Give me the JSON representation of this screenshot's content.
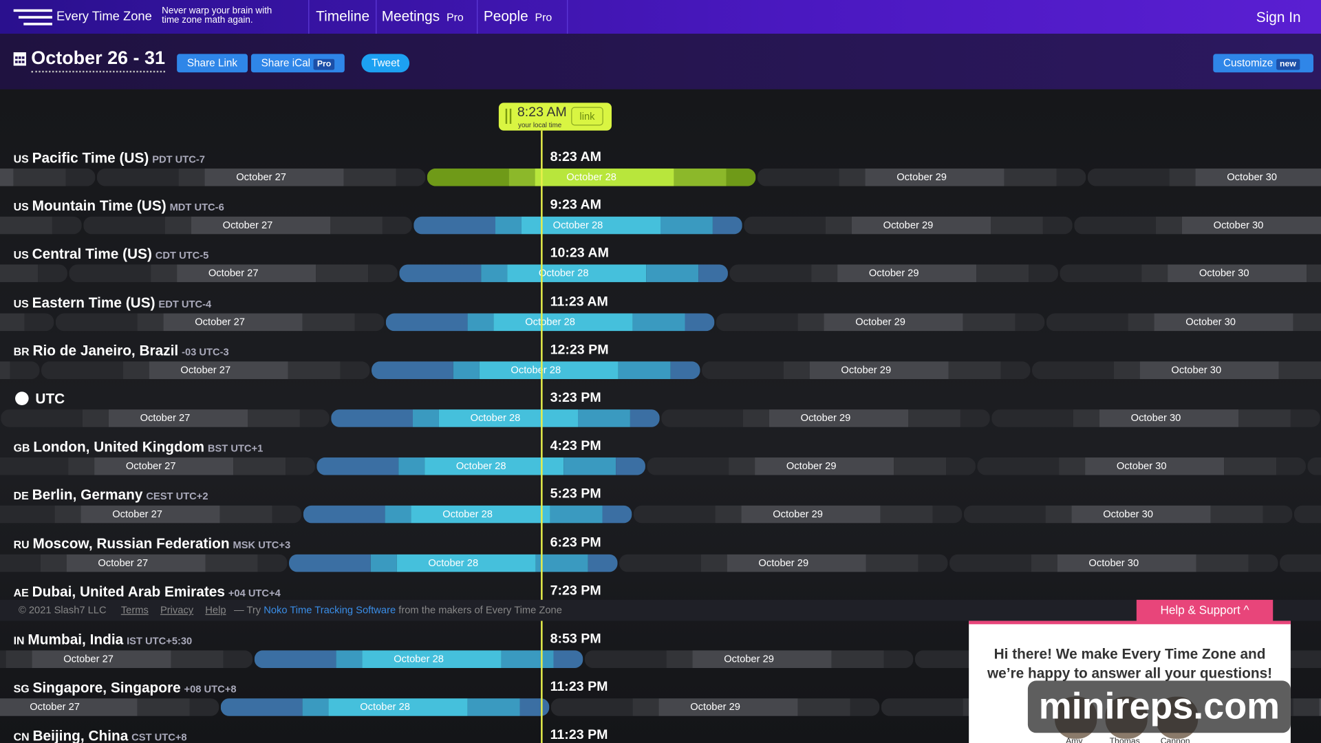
{
  "nav": {
    "logo": "Every Time Zone",
    "tagline": "Never warp your brain with time zone math again.",
    "items": [
      {
        "label": "Timeline"
      },
      {
        "label": "Meetings",
        "badge": "Pro"
      },
      {
        "label": "People",
        "badge": "Pro"
      }
    ],
    "sign_in": "Sign In"
  },
  "header": {
    "title": "October 26 - 31",
    "buttons": [
      {
        "label": "Share Link"
      },
      {
        "label": "Share iCal",
        "badge": "Pro"
      },
      {
        "label": "Tweet"
      }
    ],
    "customize": {
      "label": "Customize",
      "badge": "new"
    }
  },
  "now": {
    "time": "8:23 AM",
    "caption": "your local time",
    "link": "link"
  },
  "rows": [
    {
      "code": "US",
      "name": "Pacific Time (US)",
      "abbr": "PDT UTC-7",
      "time": "8:23 AM",
      "days": [
        "October 27",
        "October 28",
        "October 29",
        "October 30"
      ]
    },
    {
      "code": "US",
      "name": "Mountain Time (US)",
      "abbr": "MDT UTC-6",
      "time": "9:23 AM",
      "days": [
        "October 27",
        "October 28",
        "October 29",
        "October 30"
      ]
    },
    {
      "code": "US",
      "name": "Central Time (US)",
      "abbr": "CDT UTC-5",
      "time": "10:23 AM",
      "days": [
        "October 27",
        "October 28",
        "October 29",
        "October 30"
      ]
    },
    {
      "code": "US",
      "name": "Eastern Time (US)",
      "abbr": "EDT UTC-4",
      "time": "11:23 AM",
      "days": [
        "October 27",
        "October 28",
        "October 29",
        "October 30"
      ]
    },
    {
      "code": "BR",
      "name": "Rio de Janeiro, Brazil",
      "abbr": "-03 UTC-3",
      "time": "12:23 PM",
      "days": [
        "October 27",
        "October 28",
        "October 29",
        "October 30"
      ]
    },
    {
      "name": "UTC",
      "time": "3:23 PM",
      "days": [
        "October 27",
        "October 28",
        "October 29",
        "October 30"
      ]
    },
    {
      "code": "GB",
      "name": "London, United Kingdom",
      "abbr": "BST UTC+1",
      "time": "4:23 PM",
      "days": [
        "October 27",
        "October 28",
        "October 29",
        "October 30"
      ]
    },
    {
      "code": "DE",
      "name": "Berlin, Germany",
      "abbr": "CEST UTC+2",
      "time": "5:23 PM",
      "days": [
        "October 27",
        "October 28",
        "October 29",
        "October 30"
      ]
    },
    {
      "code": "RU",
      "name": "Moscow, Russian Federation",
      "abbr": "MSK UTC+3",
      "time": "6:23 PM",
      "days": [
        "October 27",
        "October 28",
        "October 29",
        "October 30"
      ]
    },
    {
      "code": "AE",
      "name": "Dubai, United Arab Emirates",
      "abbr": "+04 UTC+4",
      "time": "7:23 PM",
      "days": []
    },
    {
      "code": "IN",
      "name": "Mumbai, India",
      "abbr": "IST UTC+5:30",
      "time": "8:53 PM",
      "days": [
        "October 27",
        "October 28",
        "October 29"
      ]
    },
    {
      "code": "SG",
      "name": "Singapore, Singapore",
      "abbr": "+08 UTC+8",
      "time": "11:23 PM",
      "days": [
        "October 27",
        "October 28",
        "October 29"
      ]
    },
    {
      "code": "CN",
      "name": "Beijing, China",
      "abbr": "CST UTC+8",
      "time": "11:23 PM",
      "days": []
    }
  ],
  "footer": {
    "copyright": "© 2021 Slash7 LLC",
    "links": [
      "Terms",
      "Privacy",
      "Help"
    ],
    "try": "— Try",
    "noko": "Noko Time Tracking Software",
    "rest": "from the makers of Every Time Zone"
  },
  "help": {
    "button": "Help & Support",
    "message": "Hi there! We make Every Time Zone and we’re happy to answer all your questions!",
    "people": [
      "Amy",
      "Thomas",
      "Cannon"
    ]
  },
  "watermark": "minireps.com"
}
